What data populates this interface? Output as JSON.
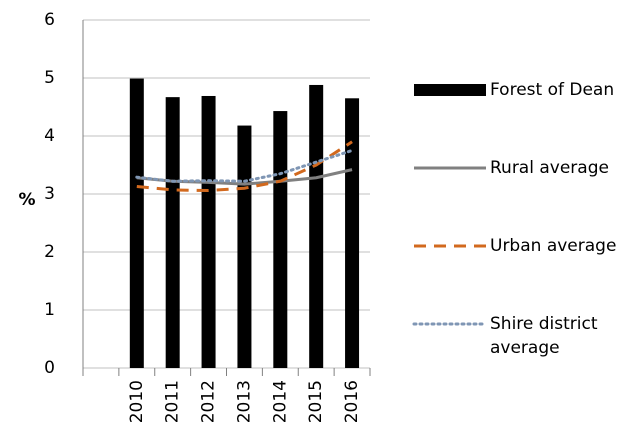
{
  "chart_data": {
    "type": "bar",
    "y_label": "%",
    "categories": [
      null,
      "2010",
      "2011",
      "2012",
      "2013",
      "2014",
      "2015",
      "2016"
    ],
    "series": [
      {
        "name": "Forest of Dean",
        "kind": "bar",
        "color": "#000000",
        "values": [
          null,
          4.99,
          4.67,
          4.69,
          4.18,
          4.43,
          4.88,
          4.65
        ]
      },
      {
        "name": "Rural average",
        "kind": "line",
        "style": "solid",
        "color": "#808080",
        "values": [
          null,
          3.28,
          3.22,
          3.2,
          3.17,
          3.22,
          3.28,
          3.42
        ]
      },
      {
        "name": "Urban average",
        "kind": "line",
        "style": "dashed",
        "color": "#d2691e",
        "values": [
          null,
          3.13,
          3.07,
          3.06,
          3.1,
          3.22,
          3.5,
          3.9
        ]
      },
      {
        "name": "Shire district average",
        "kind": "line",
        "style": "dotted",
        "color": "#7f96b4",
        "values": [
          null,
          3.29,
          3.22,
          3.23,
          3.22,
          3.35,
          3.55,
          3.75
        ]
      }
    ],
    "ylim": [
      0,
      6
    ],
    "yticks": [
      0,
      1,
      2,
      3,
      4,
      5,
      6
    ],
    "grid": true
  }
}
